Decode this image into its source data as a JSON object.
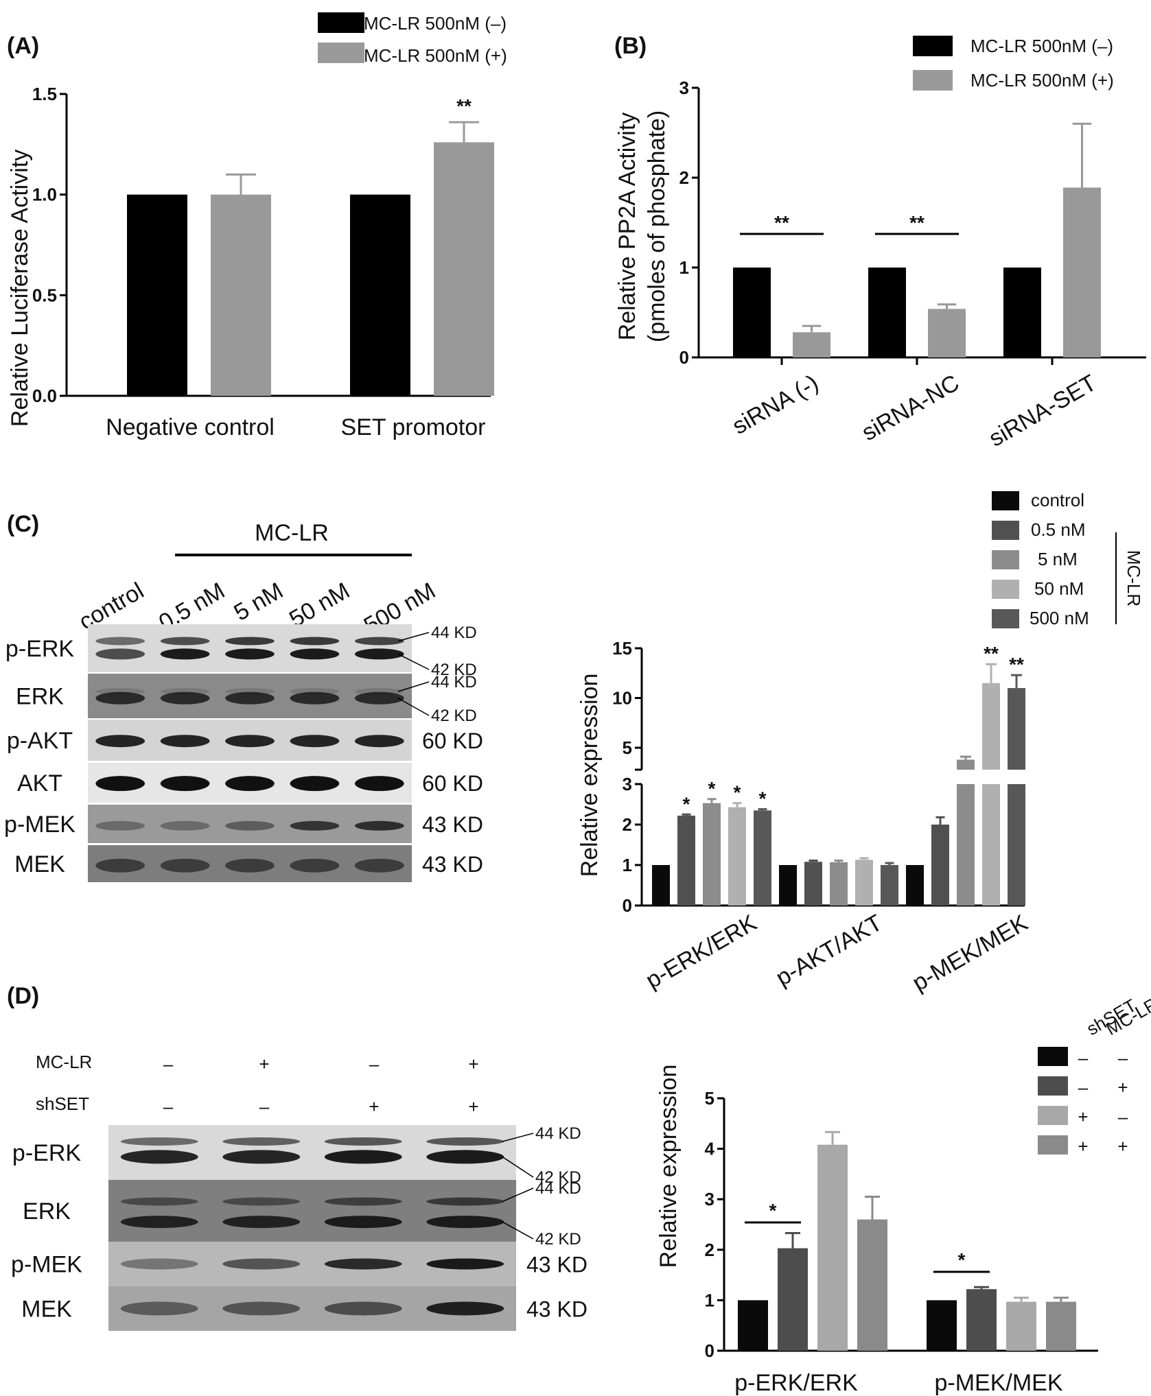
{
  "panels": {
    "A": {
      "label": "(A)",
      "chart_data": {
        "type": "bar",
        "ylabel": "Relative Luciferase Activity",
        "ylim": [
          0,
          1.5
        ],
        "yticks": [
          "0.0",
          "0.5",
          "1.0",
          "1.5"
        ],
        "categories": [
          "Negative control",
          "SET promotor"
        ],
        "series": [
          {
            "name": "MC-LR 500nM (–)",
            "color": "#000000",
            "values": [
              1.0,
              1.0
            ],
            "errors": [
              0,
              0
            ]
          },
          {
            "name": "MC-LR 500nM (+)",
            "color": "#999999",
            "values": [
              1.0,
              1.26
            ],
            "errors": [
              0.1,
              0.1
            ]
          }
        ],
        "annotations": [
          {
            "category": 1,
            "series": 1,
            "text": "**"
          }
        ],
        "legend": "top-right"
      }
    },
    "B": {
      "label": "(B)",
      "chart_data": {
        "type": "bar",
        "ylabel_line1": "Relative PP2A Activity",
        "ylabel_line2": "(pmoles of phosphate)",
        "ylim": [
          0,
          3
        ],
        "yticks": [
          "0",
          "1",
          "2",
          "3"
        ],
        "categories": [
          "siRNA (-)",
          "siRNA-NC",
          "siRNA-SET"
        ],
        "series": [
          {
            "name": "MC-LR 500nM (–)",
            "color": "#000000",
            "values": [
              1.0,
              1.0,
              1.0
            ],
            "errors": [
              0,
              0,
              0
            ]
          },
          {
            "name": "MC-LR 500nM (+)",
            "color": "#999999",
            "values": [
              0.28,
              0.54,
              1.89
            ],
            "errors": [
              0.07,
              0.05,
              0.71
            ]
          }
        ],
        "brackets": [
          {
            "category": 0,
            "text": "**"
          },
          {
            "category": 1,
            "text": "**"
          }
        ],
        "legend": "top-right"
      }
    },
    "C": {
      "label": "(C)",
      "blot": {
        "treatment": "MC-LR",
        "lanes": [
          "control",
          "0.5 nM",
          "5 nM",
          "50 nM",
          "500 nM"
        ],
        "rows": [
          {
            "name": "p-ERK",
            "kd": [
              "44 KD",
              "42 KD"
            ]
          },
          {
            "name": "ERK",
            "kd": [
              "44 KD",
              "42 KD"
            ]
          },
          {
            "name": "p-AKT",
            "kd": [
              "60 KD"
            ]
          },
          {
            "name": "AKT",
            "kd": [
              "60 KD"
            ]
          },
          {
            "name": "p-MEK",
            "kd": [
              "43 KD"
            ]
          },
          {
            "name": "MEK",
            "kd": [
              "43 KD"
            ]
          }
        ]
      },
      "chart_data": {
        "type": "bar",
        "ylabel": "Relative expression",
        "y_break": [
          3,
          3.6
        ],
        "ylim_lower": [
          0,
          3
        ],
        "ylim_upper": [
          3.6,
          15
        ],
        "yticks_lower": [
          "0",
          "1",
          "2",
          "3"
        ],
        "yticks_upper": [
          "5",
          "10",
          "15"
        ],
        "categories": [
          "p-ERK/ERK",
          "p-AKT/AKT",
          "p-MEK/MEK"
        ],
        "legend_group": "MC-LR",
        "series": [
          {
            "name": "control",
            "color": "#0a0a0a",
            "values": [
              1.0,
              1.0,
              1.0
            ],
            "errors": [
              0,
              0,
              0
            ],
            "marks": [
              "",
              "",
              ""
            ]
          },
          {
            "name": "0.5 nM",
            "color": "#505050",
            "values": [
              2.22,
              1.08,
              2.0
            ],
            "errors": [
              0.03,
              0.03,
              0.18
            ],
            "marks": [
              "*",
              "",
              ""
            ]
          },
          {
            "name": "5 nM",
            "color": "#8c8c8c",
            "values": [
              2.53,
              1.07,
              3.8
            ],
            "errors": [
              0.1,
              0.04,
              0.3
            ],
            "marks": [
              "*",
              "",
              ""
            ]
          },
          {
            "name": "50 nM",
            "color": "#b0b0b0",
            "values": [
              2.43,
              1.13,
              11.5
            ],
            "errors": [
              0.1,
              0.04,
              1.9
            ],
            "marks": [
              "*",
              "",
              "**"
            ]
          },
          {
            "name": "500 nM",
            "color": "#585858",
            "values": [
              2.35,
              1.0,
              11.0
            ],
            "errors": [
              0.03,
              0.05,
              1.3
            ],
            "marks": [
              "*",
              "",
              "**"
            ]
          }
        ],
        "legend": "top-right"
      }
    },
    "D": {
      "label": "(D)",
      "blot": {
        "conditions": [
          {
            "name": "MC-LR",
            "values": [
              "–",
              "+",
              "–",
              "+"
            ]
          },
          {
            "name": "shSET",
            "values": [
              "–",
              "–",
              "+",
              "+"
            ]
          }
        ],
        "rows": [
          {
            "name": "p-ERK",
            "kd": [
              "44 KD",
              "42 KD"
            ]
          },
          {
            "name": "ERK",
            "kd": [
              "44 KD",
              "42 KD"
            ]
          },
          {
            "name": "p-MEK",
            "kd": [
              "43 KD"
            ]
          },
          {
            "name": "MEK",
            "kd": [
              "43 KD"
            ]
          }
        ]
      },
      "chart_data": {
        "type": "bar",
        "ylabel": "Relative expression",
        "ylim": [
          0,
          5
        ],
        "yticks": [
          "0",
          "1",
          "2",
          "3",
          "4",
          "5"
        ],
        "categories": [
          "p-ERK/ERK",
          "p-MEK/MEK"
        ],
        "legend_headers": [
          "shSET",
          "MC-LR"
        ],
        "series": [
          {
            "name": "shSET – / MC-LR –",
            "shSET": "–",
            "MCLR": "–",
            "color": "#0a0a0a",
            "values": [
              1.0,
              1.0
            ],
            "errors": [
              0,
              0
            ]
          },
          {
            "name": "shSET – / MC-LR +",
            "shSET": "–",
            "MCLR": "+",
            "color": "#4d4d4d",
            "values": [
              2.03,
              1.22
            ],
            "errors": [
              0.3,
              0.04
            ]
          },
          {
            "name": "shSET + / MC-LR –",
            "shSET": "+",
            "MCLR": "–",
            "color": "#a8a8a8",
            "values": [
              4.08,
              0.97
            ],
            "errors": [
              0.25,
              0.08
            ]
          },
          {
            "name": "shSET + / MC-LR +",
            "shSET": "+",
            "MCLR": "+",
            "color": "#8a8a8a",
            "values": [
              2.6,
              0.97
            ],
            "errors": [
              0.45,
              0.08
            ]
          }
        ],
        "brackets": [
          {
            "category": 0,
            "from": 0,
            "to": 1,
            "text": "*"
          },
          {
            "category": 1,
            "from": 0,
            "to": 1,
            "text": "*"
          }
        ],
        "legend": "top-right"
      }
    }
  }
}
